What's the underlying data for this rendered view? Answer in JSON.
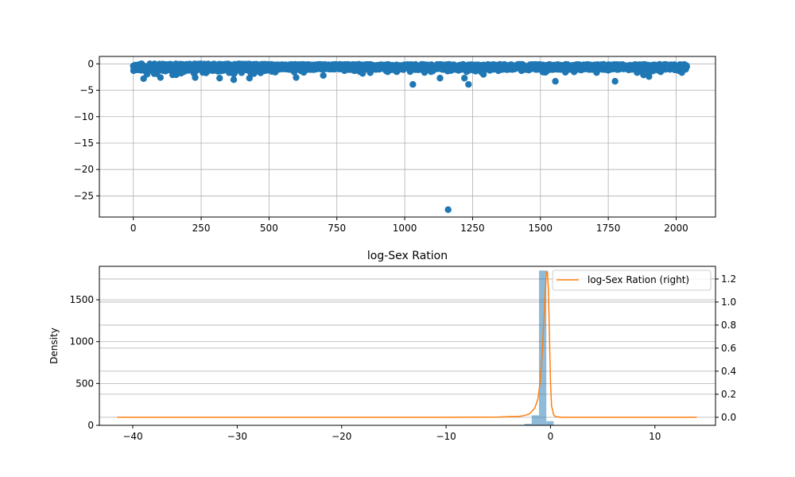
{
  "chart_data": [
    {
      "type": "scatter",
      "title": "",
      "xlabel": "",
      "ylabel": "",
      "xlim": [
        -125,
        2145
      ],
      "ylim": [
        -29.0,
        1.4
      ],
      "xticks": [
        0,
        250,
        500,
        750,
        1000,
        1250,
        1500,
        1750,
        2000
      ],
      "yticks": [
        0,
        -5,
        -10,
        -15,
        -20,
        -25
      ],
      "grid": true,
      "marker_color": "#1f77b4",
      "n_points": 2040,
      "points": [
        [
          1160,
          -27.6
        ],
        [
          38,
          -2.8
        ],
        [
          100,
          -2.6
        ],
        [
          228,
          -2.6
        ],
        [
          318,
          -2.7
        ],
        [
          370,
          -3.0
        ],
        [
          428,
          -2.7
        ],
        [
          600,
          -2.6
        ],
        [
          700,
          -2.2
        ],
        [
          845,
          -1.8
        ],
        [
          1030,
          -3.9
        ],
        [
          1130,
          -2.7
        ],
        [
          1220,
          -2.7
        ],
        [
          1235,
          -3.9
        ],
        [
          1290,
          -2.0
        ],
        [
          1555,
          -3.3
        ],
        [
          1775,
          -3.3
        ],
        [
          1880,
          -2.1
        ],
        [
          1900,
          -2.4
        ]
      ]
    },
    {
      "type": "histogram+kde",
      "title": "log-Sex Ration",
      "xlabel": "",
      "ylabel": "Density",
      "xlim": [
        -43.2,
        15.8
      ],
      "ylim_left": [
        0,
        1900
      ],
      "ylim_right": [
        -0.07,
        1.31
      ],
      "xticks": [
        -40,
        -30,
        -20,
        -10,
        0,
        10
      ],
      "yticks_left": [
        0,
        500,
        1000,
        1500
      ],
      "yticks_right": [
        0.0,
        0.2,
        0.4,
        0.6,
        0.8,
        1.0,
        1.2
      ],
      "grid": true,
      "legend": {
        "entries": [
          "log-Sex Ration (right)"
        ],
        "placement": "top-right"
      },
      "histogram": {
        "color": "#1f77b4",
        "alpha": 0.5,
        "bins": [
          {
            "x0": -28.0,
            "x1": -2.5,
            "count": 2
          },
          {
            "x0": -2.5,
            "x1": -1.8,
            "count": 18
          },
          {
            "x0": -1.8,
            "x1": -1.1,
            "count": 120
          },
          {
            "x0": -1.1,
            "x1": -0.4,
            "count": 1850
          },
          {
            "x0": -0.4,
            "x1": 0.3,
            "count": 50
          }
        ]
      },
      "kde": {
        "name": "log-Sex Ration",
        "color": "#ff7f0e",
        "x": [
          -41.5,
          -30,
          -20,
          -10,
          -5,
          -3,
          -2.5,
          -2,
          -1.5,
          -1.2,
          -1.0,
          -0.8,
          -0.6,
          -0.5,
          -0.4,
          -0.3,
          -0.2,
          -0.1,
          0.0,
          0.1,
          0.3,
          0.5,
          1,
          2,
          5,
          10,
          14
        ],
        "y": [
          0.0,
          0.0,
          0.0,
          0.0,
          0.002,
          0.008,
          0.015,
          0.03,
          0.08,
          0.16,
          0.3,
          0.55,
          0.9,
          1.1,
          1.25,
          1.27,
          1.1,
          0.7,
          0.3,
          0.1,
          0.02,
          0.005,
          0.0,
          0.0,
          0.0,
          0.0,
          0.0
        ]
      }
    }
  ]
}
